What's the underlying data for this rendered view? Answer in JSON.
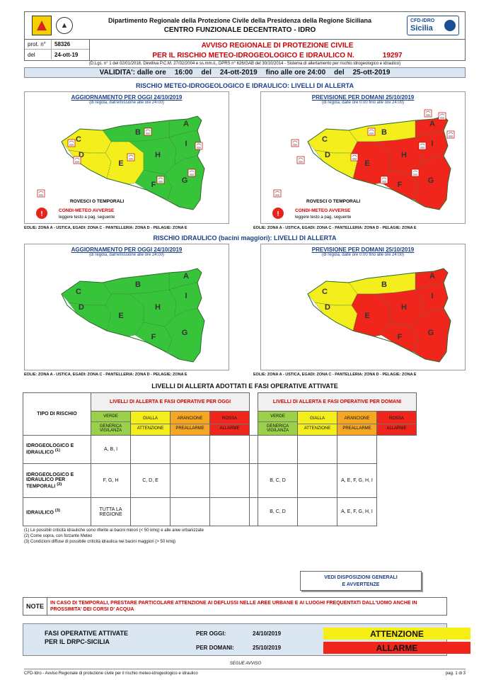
{
  "header": {
    "line1": "Dipartimento Regionale della Protezione Civile della Presidenza della Regione Siciliana",
    "line2": "CENTRO FUNZIONALE DECENTRATO - IDRO",
    "badge_top": "CFD-IDRO",
    "badge_bottom": "Sicilia"
  },
  "protocol": {
    "prot_label": "prot. n°",
    "prot_value": "58326",
    "del_label": "del",
    "del_value": "24-ott-19",
    "title1": "AVVISO REGIONALE DI PROTEZIONE CIVILE",
    "title2": "PER IL RISCHIO METEO-IDROGEOLOGICO E IDRAULICO N.",
    "number": "19297"
  },
  "legal": "(D.Lgs. n° 1 del 02/01/2018, Direttiva P.C.M. 27/02/2004 e ss.mm.ii., DPRS n° 626/GAB del 30/10/2014 - Sistema di allertamento per rischio idrogeologico e idraulico)",
  "validita": {
    "label": "VALIDITA': dalle ore",
    "from_time": "16:00",
    "del1": "del",
    "from_date": "24-ott-2019",
    "fino": "fino alle ore 24:00",
    "del2": "del",
    "to_date": "25-ott-2019"
  },
  "section1_title": "RISCHIO METEO-IDROGEOLOGICO E IDRAULICO: LIVELLI DI ALLERTA",
  "section2_title": "RISCHIO IDRAULICO (bacini maggiori): LIVELLI DI ALLERTA",
  "maps": {
    "oggi_title": "AGGIORNAMENTO PER OGGI 24/10/2019",
    "oggi_sub": "(di regola, dall'emissione alle ore 24:00)",
    "domani_title": "PREVISIONE PER DOMANI 25/10/2019",
    "domani_sub": "(di regola, dalle ore 0:00 fino alle ore 24:00)",
    "rovesci": "ROVESCI O TEMPORALI",
    "condi": "CONDI-METEO AVVERSE",
    "leggere": "leggere testo a pag. seguente",
    "zones_note": "EOLIE: ZONA A - USTICA, EGADI: ZONA C - PANTELLERIA: ZONA D - PELAGIE: ZONA E",
    "zone_letters": [
      "A",
      "B",
      "C",
      "D",
      "E",
      "F",
      "G",
      "H",
      "I"
    ],
    "colors": {
      "green": "#38c43a",
      "yellow": "#f3ee1c",
      "red": "#f0261c"
    }
  },
  "table": {
    "title": "LIVELLI DI ALLERTA ADOTTATI E FASI OPERATIVE ATTIVATE",
    "tipo_header": "TIPO DI RISCHIO",
    "oggi_header": "LIVELLI DI ALLERTA E FASI OPERATIVE PER OGGI",
    "domani_header": "LIVELLI DI ALLERTA E FASI OPERATIVE PER DOMANI",
    "levels": [
      {
        "name": "VERDE",
        "phase": "GENERICA VIGILANZA",
        "color": "#9bd14a"
      },
      {
        "name": "GIALLA",
        "phase": "ATTENZIONE",
        "color": "#f3ee1c"
      },
      {
        "name": "ARANCIONE",
        "phase": "PREALLARME",
        "color": "#f5a623"
      },
      {
        "name": "ROSSA",
        "phase": "ALLARME",
        "color": "#f0261c"
      }
    ],
    "rows": [
      {
        "label": "IDROGEOLOGICO E IDRAULICO",
        "sup": "(1)",
        "oggi": [
          "A, B, I",
          "",
          "",
          ""
        ],
        "domani": [
          "",
          "",
          "",
          ""
        ]
      },
      {
        "label": "IDROGEOLOGICO E IDRAULICO PER TEMPORALI",
        "sup": "(2)",
        "oggi": [
          "F, G, H",
          "C, D, E",
          "",
          ""
        ],
        "domani": [
          "",
          "B, C, D",
          "",
          "A, E, F, G, H, I"
        ]
      },
      {
        "label": "IDRAULICO",
        "sup": "(3)",
        "oggi": [
          "TUTTA LA REGIONE",
          "",
          "",
          ""
        ],
        "domani": [
          "",
          "B, C, D",
          "",
          "A, E, F, G, H, I"
        ]
      }
    ]
  },
  "legend": [
    "(1) Le possibili criticità idrauliche sono riferite ai bacini minori (< 50 kmq) e alle aree urbanizzate",
    "(2) Come sopra, con forzante Meteo",
    "(3) Condizioni diffuse di possibile criticità idraulica nei bacini maggiori (> 50 kmq)"
  ],
  "vedi": [
    "VEDI DISPOSIZIONI GENERALI",
    "E AVVERTENZE"
  ],
  "note": {
    "label": "NOTE",
    "text": "IN CASO DI TEMPORALI, PRESTARE PARTICOLARE ATTENZIONE AI DEFLUSSI NELLE AREE URBANE E AI LUOGHI FREQUENTATI DALL'UOMO ANCHE IN PROSSIMITA' DEI CORSI D' ACQUA"
  },
  "fasi": {
    "label1": "FASI OPERATIVE ATTIVATE",
    "label2": "PER IL DRPC-SICILIA",
    "oggi_label": "PER OGGI:",
    "oggi_date": "24/10/2019",
    "oggi_phase": "ATTENZIONE",
    "domani_label": "PER DOMANI:",
    "domani_date": "25/10/2019",
    "domani_phase": "ALLARME"
  },
  "segue": "SEGUE AVVISO",
  "footer": {
    "left": "CFD-Idro - Avviso Regionale di protezione civile per il rischio meteo-idrogeologico e idraulico",
    "right": "pag. 1 di 3"
  }
}
